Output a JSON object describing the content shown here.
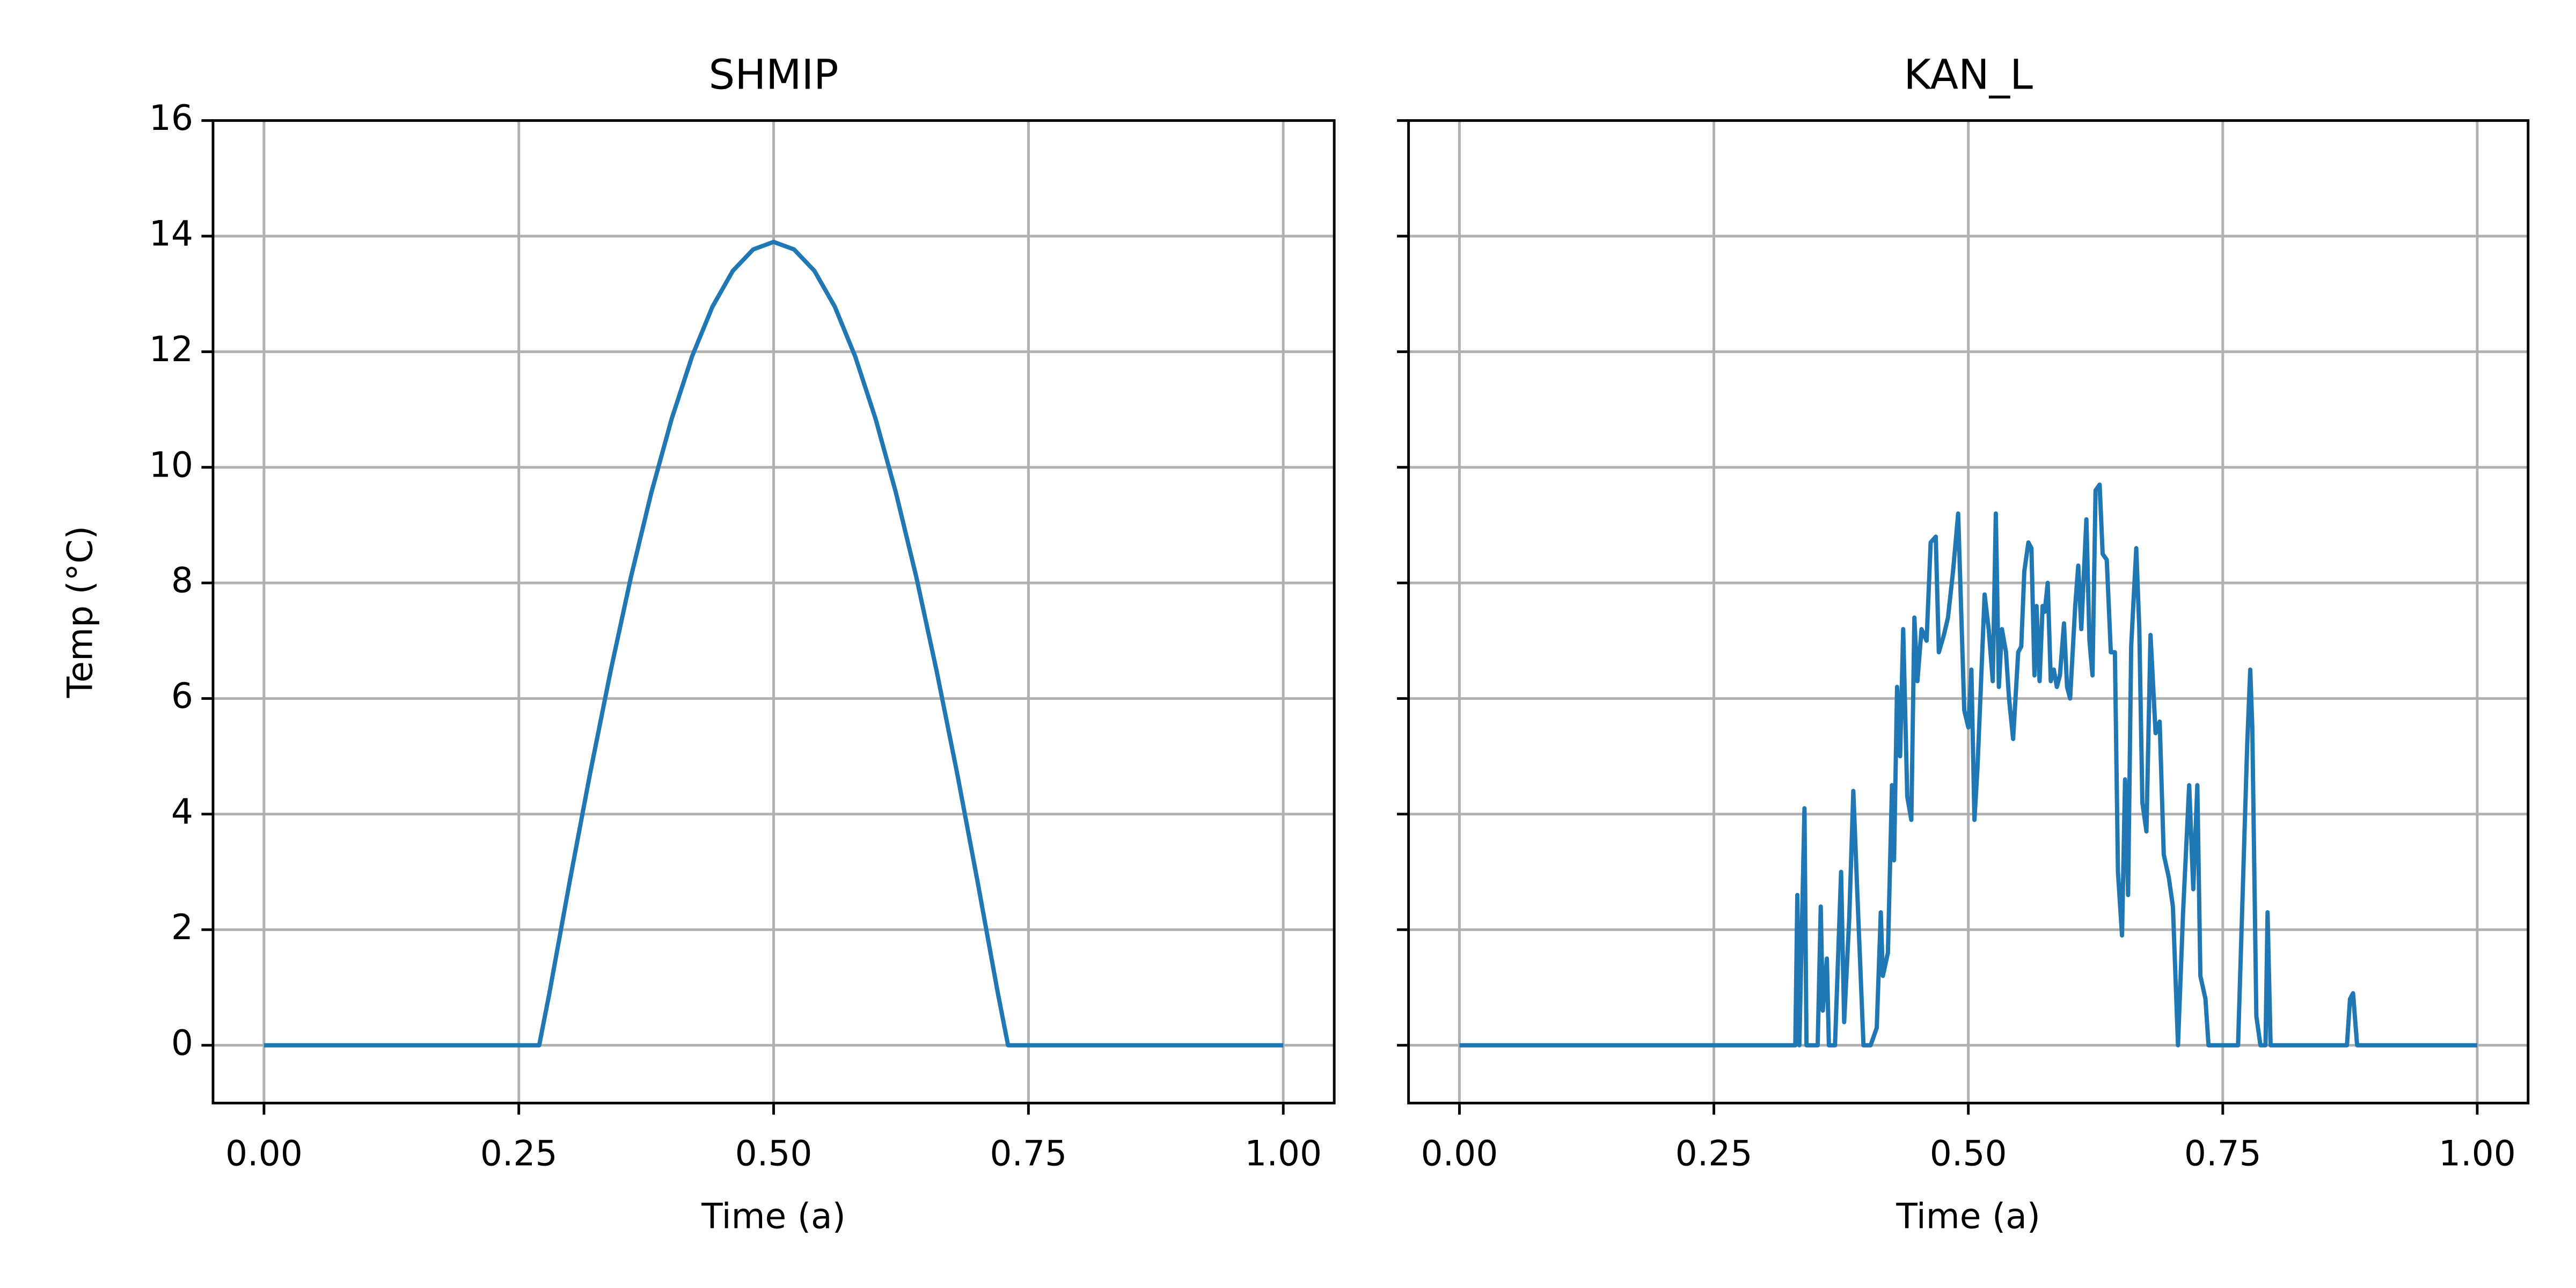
{
  "chart_data": [
    {
      "type": "line",
      "title": "SHMIP",
      "x_label": "Time (a)",
      "y_label": "Temp (°C)",
      "x": [
        0,
        0.27,
        0.28,
        0.3,
        0.32,
        0.34,
        0.36,
        0.38,
        0.4,
        0.42,
        0.44,
        0.46,
        0.48,
        0.5,
        0.52,
        0.54,
        0.56,
        0.58,
        0.6,
        0.62,
        0.64,
        0.66,
        0.68,
        0.7,
        0.72,
        0.73,
        1.0
      ],
      "values": [
        0,
        0,
        0.9,
        2.84,
        4.71,
        6.47,
        8.1,
        9.56,
        10.84,
        11.92,
        12.78,
        13.4,
        13.77,
        13.9,
        13.77,
        13.4,
        12.78,
        11.92,
        10.84,
        9.56,
        8.1,
        6.47,
        4.71,
        2.84,
        0.9,
        0,
        0
      ],
      "color": "#1f77b4",
      "xlim": [
        -0.05,
        1.05
      ],
      "ylim": [
        -1,
        16
      ],
      "xticks": [
        {
          "value": 0,
          "label": "0.00"
        },
        {
          "value": 0.25,
          "label": "0.25"
        },
        {
          "value": 0.5,
          "label": "0.50"
        },
        {
          "value": 0.75,
          "label": "0.75"
        },
        {
          "value": 1,
          "label": "1.00"
        }
      ],
      "yticks": [
        0,
        2,
        4,
        6,
        8,
        10,
        12,
        14,
        16
      ],
      "grid": true,
      "show_ytick_labels": true
    },
    {
      "type": "line",
      "title": "KAN_L",
      "x_label": "Time (a)",
      "x": [
        0,
        0.33,
        0.332,
        0.334,
        0.339,
        0.341,
        0.352,
        0.355,
        0.357,
        0.361,
        0.363,
        0.369,
        0.375,
        0.378,
        0.383,
        0.387,
        0.391,
        0.397,
        0.404,
        0.41,
        0.414,
        0.416,
        0.421,
        0.425,
        0.427,
        0.43,
        0.433,
        0.436,
        0.44,
        0.444,
        0.447,
        0.45,
        0.454,
        0.459,
        0.463,
        0.468,
        0.471,
        0.476,
        0.48,
        0.485,
        0.49,
        0.493,
        0.496,
        0.5,
        0.503,
        0.506,
        0.509,
        0.513,
        0.516,
        0.52,
        0.524,
        0.527,
        0.53,
        0.533,
        0.537,
        0.54,
        0.544,
        0.549,
        0.552,
        0.555,
        0.559,
        0.562,
        0.565,
        0.567,
        0.57,
        0.573,
        0.575,
        0.578,
        0.581,
        0.584,
        0.587,
        0.59,
        0.594,
        0.597,
        0.6,
        0.605,
        0.608,
        0.611,
        0.616,
        0.619,
        0.622,
        0.625,
        0.629,
        0.632,
        0.636,
        0.64,
        0.644,
        0.647,
        0.651,
        0.654,
        0.657,
        0.66,
        0.665,
        0.668,
        0.671,
        0.675,
        0.679,
        0.684,
        0.688,
        0.692,
        0.697,
        0.701,
        0.706,
        0.711,
        0.717,
        0.721,
        0.725,
        0.728,
        0.733,
        0.736,
        0.765,
        0.774,
        0.777,
        0.779,
        0.783,
        0.787,
        0.792,
        0.794,
        0.797,
        0.872,
        0.875,
        0.878,
        0.882,
        1.0
      ],
      "values": [
        0,
        0,
        2.6,
        0,
        4.1,
        0,
        0,
        2.4,
        0.6,
        1.5,
        0,
        0,
        3.0,
        0.4,
        2.2,
        4.4,
        2.6,
        0,
        0,
        0.3,
        2.3,
        1.2,
        1.6,
        4.5,
        3.2,
        6.2,
        5.0,
        7.2,
        4.3,
        3.9,
        7.4,
        6.3,
        7.2,
        7.0,
        8.7,
        8.8,
        6.8,
        7.1,
        7.4,
        8.2,
        9.2,
        7.5,
        5.8,
        5.5,
        6.5,
        3.9,
        4.8,
        6.5,
        7.8,
        7.2,
        6.3,
        9.2,
        6.2,
        7.2,
        6.8,
        6.0,
        5.3,
        6.8,
        6.9,
        8.2,
        8.7,
        8.6,
        6.4,
        7.6,
        6.3,
        7.6,
        7.5,
        8.0,
        6.3,
        6.5,
        6.2,
        6.4,
        7.3,
        6.2,
        6.0,
        7.6,
        8.3,
        7.2,
        9.1,
        7.0,
        6.4,
        9.6,
        9.7,
        8.5,
        8.4,
        6.8,
        6.8,
        3.0,
        1.9,
        4.6,
        2.6,
        6.9,
        8.6,
        7.2,
        4.2,
        3.7,
        7.1,
        5.4,
        5.6,
        3.3,
        2.9,
        2.4,
        0,
        2.3,
        4.5,
        2.7,
        4.5,
        1.2,
        0.8,
        0,
        0,
        5.2,
        6.5,
        5.5,
        0.5,
        0,
        0,
        2.3,
        0,
        0,
        0.8,
        0.9,
        0,
        0
      ],
      "color": "#1f77b4",
      "xlim": [
        -0.05,
        1.05
      ],
      "ylim": [
        -1,
        16
      ],
      "xticks": [
        {
          "value": 0,
          "label": "0.00"
        },
        {
          "value": 0.25,
          "label": "0.25"
        },
        {
          "value": 0.5,
          "label": "0.50"
        },
        {
          "value": 0.75,
          "label": "0.75"
        },
        {
          "value": 1,
          "label": "1.00"
        }
      ],
      "yticks": [
        0,
        2,
        4,
        6,
        8,
        10,
        12,
        14,
        16
      ],
      "grid": true,
      "show_ytick_labels": false
    }
  ]
}
